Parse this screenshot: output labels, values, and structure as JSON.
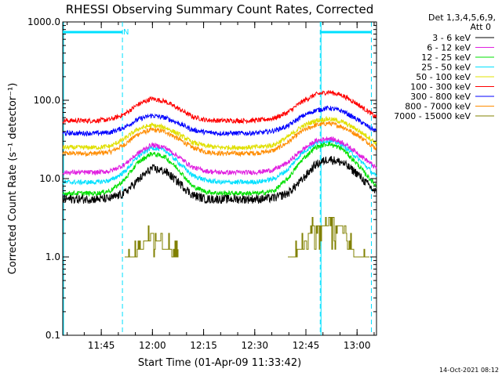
{
  "chart_data": {
    "type": "line",
    "title": "RHESSI Observing Summary Count Rates, Corrected",
    "xlabel": "Start Time (01-Apr-09 11:33:42)",
    "ylabel": "Corrected Count Rate (s⁻¹ detector⁻¹)",
    "yscale": "log",
    "ylim": [
      0.1,
      1000
    ],
    "xlim_minutes": [
      0,
      92
    ],
    "x_tick_labels": [
      "11:45",
      "12:00",
      "12:15",
      "12:30",
      "12:45",
      "13:00"
    ],
    "x_tick_minutes": [
      11.3,
      26.3,
      41.3,
      56.3,
      71.3,
      86.3
    ],
    "y_tick_labels": [
      "0.1",
      "1.0",
      "10.0",
      "100.0",
      "1000.0"
    ],
    "y_tick_values": [
      0.1,
      1,
      10,
      100,
      1000
    ],
    "legend_header": [
      "Det 1,3,4,5,6,9,",
      "Att 0"
    ],
    "legend_position": "top-right",
    "flag_label": "N",
    "stamp": "14-Oct-2021 08:12",
    "time_minutes": [
      0,
      5,
      10,
      14,
      18,
      22,
      26,
      30,
      34,
      38,
      42,
      46,
      50,
      54,
      58,
      62,
      66,
      70,
      74,
      78,
      82,
      86,
      90,
      92
    ],
    "series": [
      {
        "name": "3 - 6 keV",
        "color": "#000000",
        "values": [
          5.5,
          5.5,
          5.5,
          5.6,
          6.5,
          9.5,
          13.5,
          12.5,
          9,
          6.2,
          5.5,
          5.5,
          5.5,
          5.5,
          5.5,
          5.7,
          6.5,
          9.5,
          15,
          18,
          16,
          12,
          8,
          6.5
        ]
      },
      {
        "name": "6 - 12 keV",
        "color": "#e020e0",
        "values": [
          12,
          12,
          12,
          12.5,
          15,
          21,
          27,
          25,
          19,
          14,
          12.5,
          12,
          12,
          12,
          12.2,
          13,
          16,
          23,
          30,
          33,
          29,
          22,
          16,
          13.5
        ]
      },
      {
        "name": "12 - 25 keV",
        "color": "#00e000",
        "values": [
          6.5,
          6.5,
          6.5,
          7,
          9.5,
          16,
          21,
          19,
          13,
          8,
          6.8,
          6.5,
          6.5,
          6.5,
          6.5,
          7,
          10,
          17,
          25,
          28,
          24,
          16,
          10,
          8
        ]
      },
      {
        "name": "25 - 50 keV",
        "color": "#00e0ff",
        "values": [
          9,
          9,
          9,
          9.5,
          12,
          19,
          25,
          23,
          16,
          11,
          9.5,
          9,
          9,
          9,
          9.2,
          10,
          13,
          21,
          28,
          31,
          27,
          19,
          13,
          10.5
        ]
      },
      {
        "name": "50 - 100 keV",
        "color": "#e0e000",
        "values": [
          25,
          25,
          25,
          26,
          32,
          43,
          48,
          45,
          37,
          29,
          26,
          25,
          25,
          25,
          25.5,
          27,
          34,
          46,
          55,
          58,
          53,
          43,
          33,
          28
        ]
      },
      {
        "name": "100 - 300 keV",
        "color": "#ff0000",
        "values": [
          55,
          55,
          55,
          57,
          66,
          88,
          105,
          97,
          78,
          62,
          56,
          55,
          55,
          55,
          56,
          59,
          70,
          95,
          118,
          128,
          116,
          92,
          70,
          60
        ]
      },
      {
        "name": "300 - 800 keV",
        "color": "#0000ff",
        "values": [
          38,
          38,
          38,
          39,
          45,
          57,
          64,
          60,
          51,
          42,
          39,
          38,
          38,
          38,
          38.5,
          41,
          47,
          62,
          74,
          80,
          73,
          58,
          45,
          40
        ]
      },
      {
        "name": "800 - 7000 keV",
        "color": "#ff8c00",
        "values": [
          21,
          21,
          21,
          22,
          27,
          37,
          42,
          40,
          32,
          25,
          22,
          21,
          21,
          21,
          21.5,
          23,
          29,
          40,
          48,
          51,
          46,
          37,
          28,
          24
        ]
      },
      {
        "name": "7000 - 15000 keV",
        "color": "#808000",
        "values": [
          null,
          null,
          null,
          null,
          1.0,
          1.2,
          2.0,
          1.4,
          1.0,
          null,
          null,
          null,
          null,
          null,
          null,
          null,
          1.0,
          1.3,
          2.8,
          3.0,
          2.4,
          1.0,
          1.0,
          null
        ]
      }
    ],
    "saa_markers_minutes": [
      17.5,
      75.5,
      90.5
    ],
    "night_markers_minutes": [
      0,
      75.5
    ]
  }
}
